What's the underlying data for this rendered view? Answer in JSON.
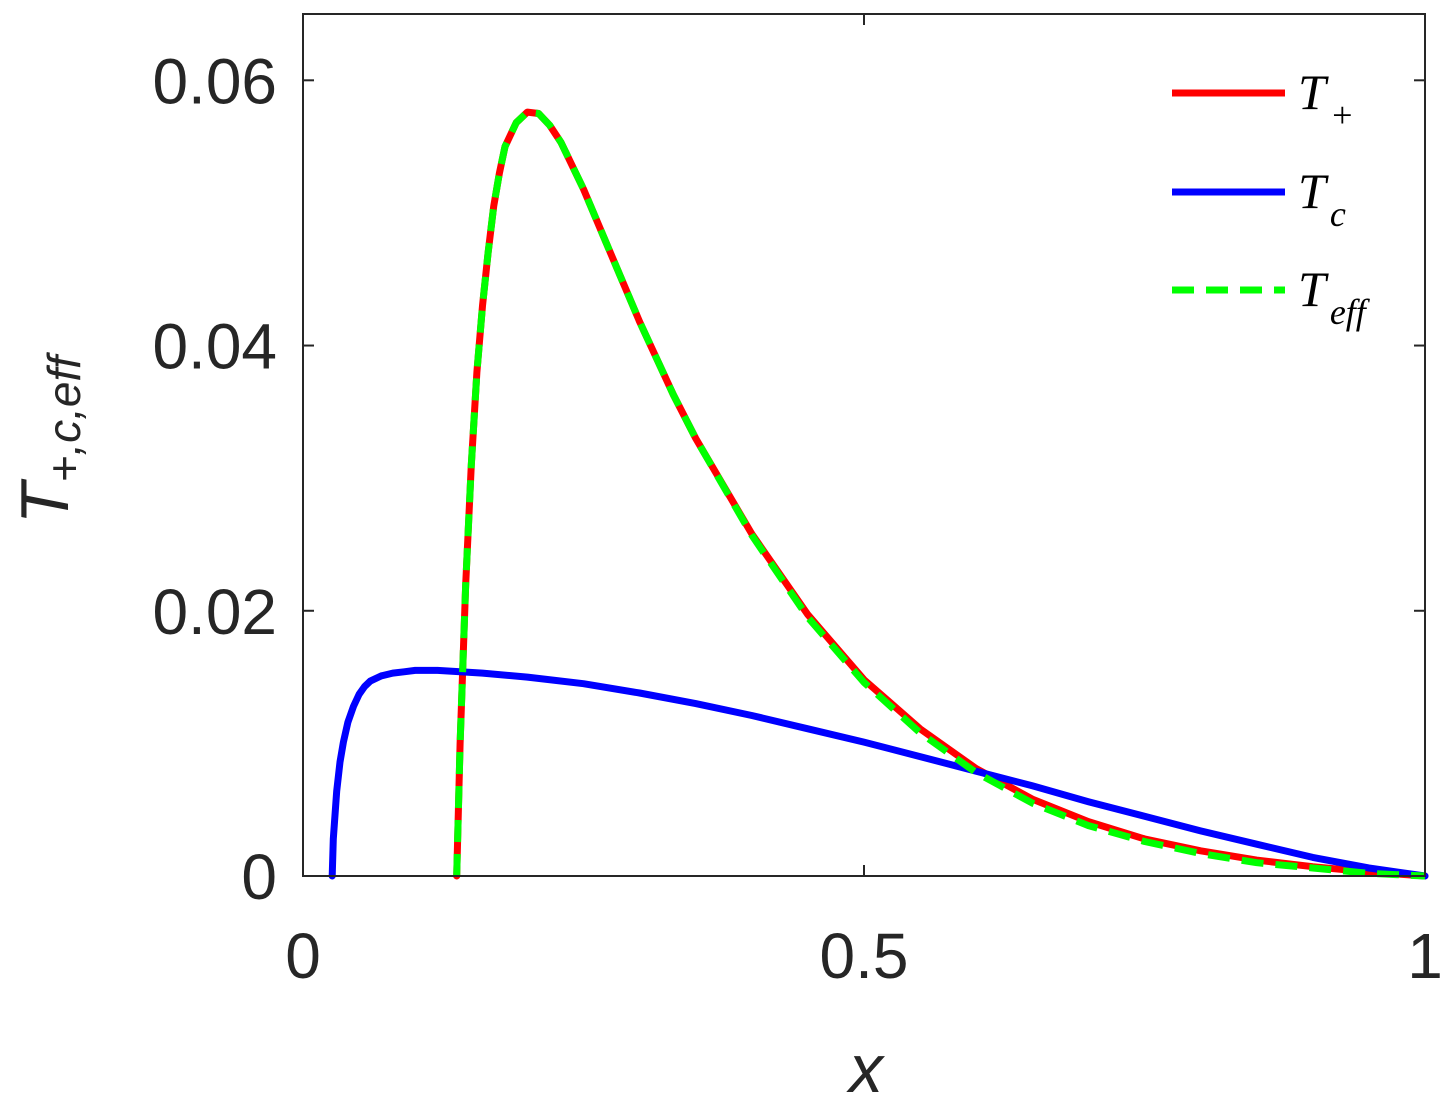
{
  "chart_data": {
    "type": "line",
    "xlabel": "x",
    "ylabel_main": "T",
    "ylabel_sub": "+,c,eff",
    "xlim": [
      0,
      1
    ],
    "ylim": [
      0,
      0.065
    ],
    "xticks": [
      0,
      0.5,
      1
    ],
    "xtick_labels": [
      "0",
      "0.5",
      "1"
    ],
    "yticks": [
      0,
      0.02,
      0.04,
      0.06
    ],
    "ytick_labels": [
      "0",
      "0.02",
      "0.04",
      "0.06"
    ],
    "grid": false,
    "legend_placement": "top-right",
    "series": [
      {
        "name": "T_+",
        "legend_main": "T",
        "legend_sub": "+",
        "color": "#ff0000",
        "dash": "solid",
        "x": [
          0.137,
          0.14,
          0.145,
          0.15,
          0.155,
          0.16,
          0.165,
          0.17,
          0.175,
          0.18,
          0.19,
          0.2,
          0.21,
          0.22,
          0.23,
          0.25,
          0.27,
          0.3,
          0.33,
          0.35,
          0.4,
          0.45,
          0.5,
          0.55,
          0.6,
          0.65,
          0.7,
          0.75,
          0.8,
          0.85,
          0.9,
          0.95,
          1.0
        ],
        "y": [
          0.0,
          0.01,
          0.022,
          0.031,
          0.038,
          0.043,
          0.047,
          0.0505,
          0.053,
          0.055,
          0.0568,
          0.0576,
          0.0575,
          0.0566,
          0.0553,
          0.0518,
          0.0478,
          0.0418,
          0.0363,
          0.033,
          0.0258,
          0.0197,
          0.0148,
          0.0111,
          0.0081,
          0.0058,
          0.0041,
          0.0028,
          0.0019,
          0.0012,
          0.0007,
          0.0003,
          0.0
        ]
      },
      {
        "name": "T_c",
        "legend_main": "T",
        "legend_sub": "c",
        "color": "#0000ff",
        "dash": "solid",
        "x": [
          0.026,
          0.027,
          0.03,
          0.033,
          0.036,
          0.04,
          0.045,
          0.05,
          0.055,
          0.06,
          0.07,
          0.08,
          0.09,
          0.1,
          0.11,
          0.12,
          0.14,
          0.16,
          0.2,
          0.25,
          0.3,
          0.35,
          0.4,
          0.45,
          0.5,
          0.55,
          0.6,
          0.65,
          0.7,
          0.75,
          0.8,
          0.85,
          0.9,
          0.95,
          1.0
        ],
        "y": [
          0.0,
          0.0028,
          0.0064,
          0.0086,
          0.0101,
          0.0116,
          0.0128,
          0.0137,
          0.0143,
          0.0147,
          0.0151,
          0.0153,
          0.0154,
          0.0155,
          0.0155,
          0.0155,
          0.0154,
          0.0153,
          0.015,
          0.0145,
          0.0138,
          0.013,
          0.0121,
          0.0111,
          0.0101,
          0.009,
          0.0079,
          0.0068,
          0.0056,
          0.0045,
          0.0034,
          0.0024,
          0.0014,
          0.0006,
          0.0
        ]
      },
      {
        "name": "T_eff",
        "legend_main": "T",
        "legend_sub": "eff",
        "color": "#00ff00",
        "dash": "dashed",
        "x": [
          0.137,
          0.14,
          0.145,
          0.15,
          0.155,
          0.16,
          0.165,
          0.17,
          0.175,
          0.18,
          0.19,
          0.2,
          0.21,
          0.22,
          0.23,
          0.25,
          0.27,
          0.3,
          0.33,
          0.35,
          0.4,
          0.45,
          0.5,
          0.55,
          0.6,
          0.65,
          0.7,
          0.75,
          0.8,
          0.85,
          0.9,
          0.95,
          1.0
        ],
        "y": [
          0.0,
          0.01,
          0.022,
          0.031,
          0.038,
          0.043,
          0.047,
          0.0505,
          0.053,
          0.055,
          0.0568,
          0.0576,
          0.0575,
          0.0566,
          0.0553,
          0.0518,
          0.0478,
          0.0418,
          0.0363,
          0.033,
          0.0257,
          0.0195,
          0.0146,
          0.0108,
          0.0078,
          0.0055,
          0.0038,
          0.0026,
          0.0017,
          0.001,
          0.0006,
          0.0002,
          0.0
        ]
      }
    ]
  }
}
